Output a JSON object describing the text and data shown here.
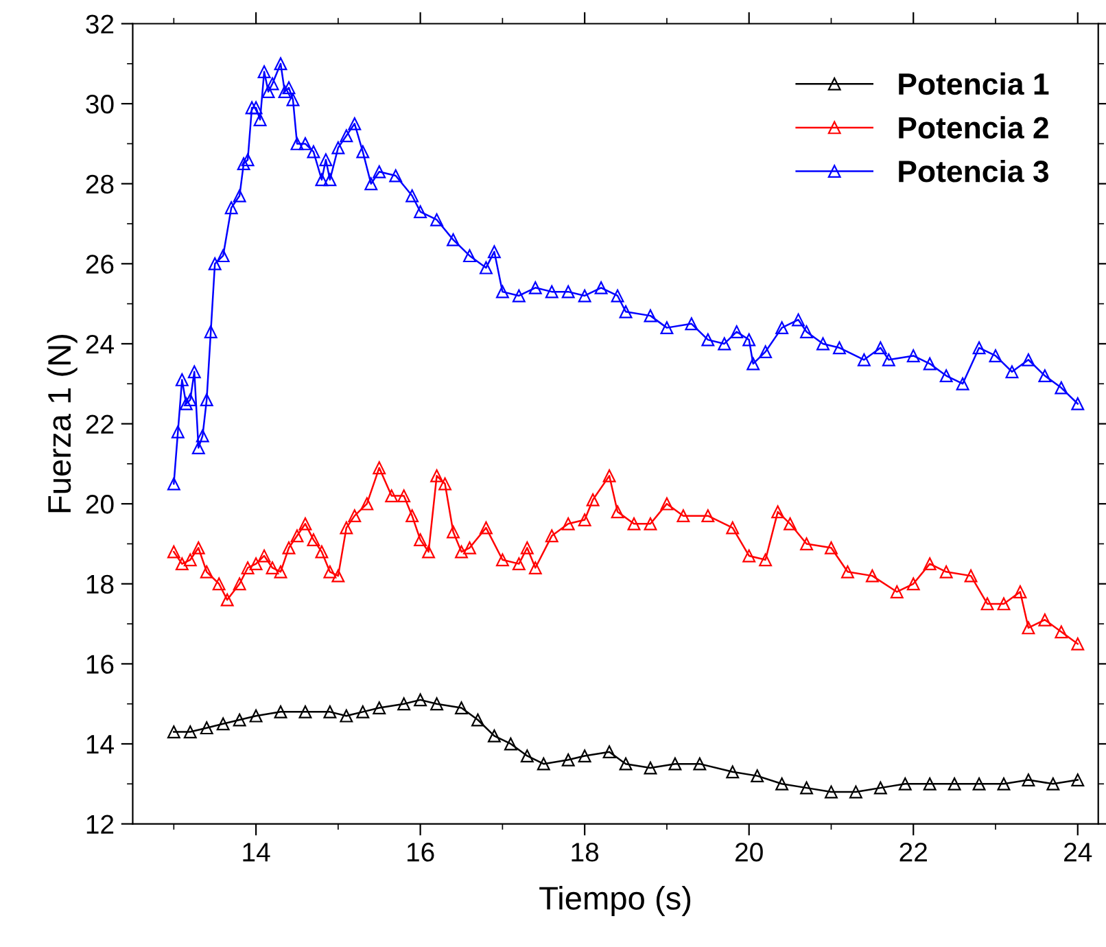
{
  "chart_data": {
    "type": "line",
    "xlabel": "Tiempo (s)",
    "ylabel": "Fuerza 1 (N)",
    "xlim": [
      12.5,
      24.25
    ],
    "xticks": [
      14,
      16,
      18,
      20,
      22,
      24
    ],
    "ylim": [
      12,
      32
    ],
    "yticks": [
      12,
      14,
      16,
      18,
      20,
      22,
      24,
      26,
      28,
      30,
      32
    ],
    "marker": "triangle",
    "legend": "top right",
    "grid": false,
    "series": [
      {
        "name": "Potencia 1",
        "color": "#000000",
        "x": [
          13.0,
          13.2,
          13.4,
          13.6,
          13.8,
          14.0,
          14.3,
          14.6,
          14.9,
          15.1,
          15.3,
          15.5,
          15.8,
          16.0,
          16.2,
          16.5,
          16.7,
          16.9,
          17.1,
          17.3,
          17.5,
          17.8,
          18.0,
          18.3,
          18.5,
          18.8,
          19.1,
          19.4,
          19.8,
          20.1,
          20.4,
          20.7,
          21.0,
          21.3,
          21.6,
          21.9,
          22.2,
          22.5,
          22.8,
          23.1,
          23.4,
          23.7,
          24.0
        ],
        "values": [
          14.3,
          14.3,
          14.4,
          14.5,
          14.6,
          14.7,
          14.8,
          14.8,
          14.8,
          14.7,
          14.8,
          14.9,
          15.0,
          15.1,
          15.0,
          14.9,
          14.6,
          14.2,
          14.0,
          13.7,
          13.5,
          13.6,
          13.7,
          13.8,
          13.5,
          13.4,
          13.5,
          13.5,
          13.3,
          13.2,
          13.0,
          12.9,
          12.8,
          12.8,
          12.9,
          13.0,
          13.0,
          13.0,
          13.0,
          13.0,
          13.1,
          13.0,
          13.1
        ]
      },
      {
        "name": "Potencia 2",
        "color": "#ff0000",
        "x": [
          13.0,
          13.1,
          13.2,
          13.3,
          13.4,
          13.55,
          13.65,
          13.8,
          13.9,
          14.0,
          14.1,
          14.2,
          14.3,
          14.4,
          14.5,
          14.6,
          14.7,
          14.8,
          14.9,
          15.0,
          15.1,
          15.2,
          15.35,
          15.5,
          15.65,
          15.8,
          15.9,
          16.0,
          16.1,
          16.2,
          16.3,
          16.4,
          16.5,
          16.6,
          16.8,
          17.0,
          17.2,
          17.3,
          17.4,
          17.6,
          17.8,
          18.0,
          18.1,
          18.3,
          18.4,
          18.6,
          18.8,
          19.0,
          19.2,
          19.5,
          19.8,
          20.0,
          20.2,
          20.35,
          20.5,
          20.7,
          21.0,
          21.2,
          21.5,
          21.8,
          22.0,
          22.2,
          22.4,
          22.7,
          22.9,
          23.1,
          23.3,
          23.4,
          23.6,
          23.8,
          24.0
        ],
        "values": [
          18.8,
          18.5,
          18.6,
          18.9,
          18.3,
          18.0,
          17.6,
          18.0,
          18.4,
          18.5,
          18.7,
          18.4,
          18.3,
          18.9,
          19.2,
          19.5,
          19.1,
          18.8,
          18.3,
          18.2,
          19.4,
          19.7,
          20.0,
          20.9,
          20.2,
          20.2,
          19.7,
          19.1,
          18.8,
          20.7,
          20.5,
          19.3,
          18.8,
          18.9,
          19.4,
          18.6,
          18.5,
          18.9,
          18.4,
          19.2,
          19.5,
          19.6,
          20.1,
          20.7,
          19.8,
          19.5,
          19.5,
          20.0,
          19.7,
          19.7,
          19.4,
          18.7,
          18.6,
          19.8,
          19.5,
          19.0,
          18.9,
          18.3,
          18.2,
          17.8,
          18.0,
          18.5,
          18.3,
          18.2,
          17.5,
          17.5,
          17.8,
          16.9,
          17.1,
          16.8,
          16.5
        ]
      },
      {
        "name": "Potencia 3",
        "color": "#0000ff",
        "x": [
          13.0,
          13.05,
          13.1,
          13.15,
          13.2,
          13.25,
          13.3,
          13.35,
          13.4,
          13.45,
          13.5,
          13.6,
          13.7,
          13.8,
          13.85,
          13.9,
          13.95,
          14.0,
          14.05,
          14.1,
          14.15,
          14.2,
          14.3,
          14.35,
          14.4,
          14.45,
          14.5,
          14.6,
          14.7,
          14.8,
          14.85,
          14.9,
          15.0,
          15.1,
          15.2,
          15.3,
          15.4,
          15.5,
          15.7,
          15.9,
          16.0,
          16.2,
          16.4,
          16.6,
          16.8,
          16.9,
          17.0,
          17.2,
          17.4,
          17.6,
          17.8,
          18.0,
          18.2,
          18.4,
          18.5,
          18.8,
          19.0,
          19.3,
          19.5,
          19.7,
          19.85,
          20.0,
          20.05,
          20.2,
          20.4,
          20.6,
          20.7,
          20.9,
          21.1,
          21.4,
          21.6,
          21.7,
          22.0,
          22.2,
          22.4,
          22.6,
          22.8,
          23.0,
          23.2,
          23.4,
          23.6,
          23.8,
          24.0
        ],
        "values": [
          20.5,
          21.8,
          23.1,
          22.5,
          22.6,
          23.3,
          21.4,
          21.7,
          22.6,
          24.3,
          26.0,
          26.2,
          27.4,
          27.7,
          28.5,
          28.6,
          29.9,
          29.9,
          29.6,
          30.8,
          30.3,
          30.5,
          31.0,
          30.3,
          30.4,
          30.1,
          29.0,
          29.0,
          28.8,
          28.1,
          28.6,
          28.1,
          28.9,
          29.2,
          29.5,
          28.8,
          28.0,
          28.3,
          28.2,
          27.7,
          27.3,
          27.1,
          26.6,
          26.2,
          25.9,
          26.3,
          25.3,
          25.2,
          25.4,
          25.3,
          25.3,
          25.2,
          25.4,
          25.2,
          24.8,
          24.7,
          24.4,
          24.5,
          24.1,
          24.0,
          24.3,
          24.1,
          23.5,
          23.8,
          24.4,
          24.6,
          24.3,
          24.0,
          23.9,
          23.6,
          23.9,
          23.6,
          23.7,
          23.5,
          23.2,
          23.0,
          23.9,
          23.7,
          23.3,
          23.6,
          23.2,
          22.9,
          22.5
        ]
      }
    ]
  }
}
